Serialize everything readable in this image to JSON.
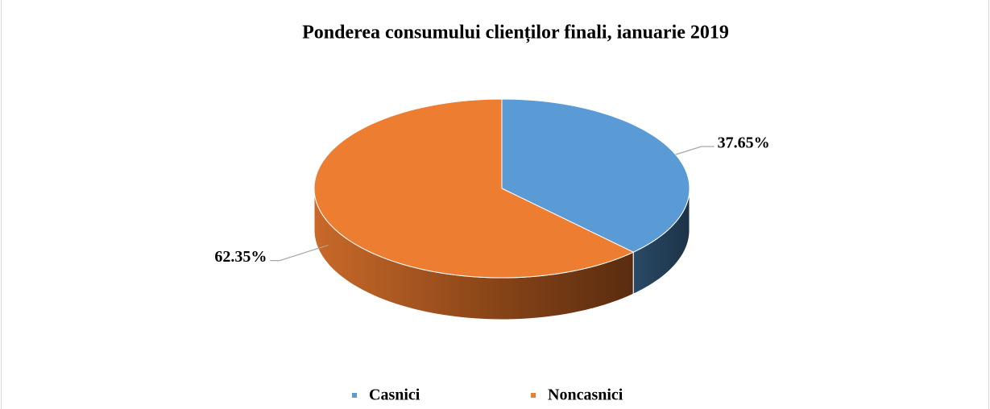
{
  "chart_data": {
    "type": "pie",
    "title": "Ponderea consumului clienților finali, ianuarie 2019",
    "categories": [
      "Casnici",
      "Noncasnici"
    ],
    "values": [
      37.65,
      62.35
    ],
    "value_labels": [
      "37.65%",
      "62.35%"
    ],
    "colors": [
      "#5b9bd5",
      "#ed7d31"
    ],
    "legend": "bottom"
  }
}
